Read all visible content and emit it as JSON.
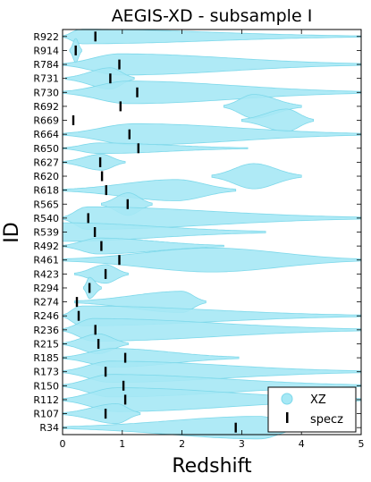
{
  "chart_data": {
    "type": "violin",
    "title": "AEGIS-XD - subsample I",
    "xlabel": "Redshift",
    "ylabel": "ID",
    "xlim": [
      0,
      5
    ],
    "xticks": [
      "0",
      "1",
      "2",
      "3",
      "4",
      "5"
    ],
    "grid": false,
    "legend": {
      "placement": "bottom-right",
      "entries": [
        {
          "label": "XZ",
          "marker": "circle",
          "color": "#a6e8f5"
        },
        {
          "label": "specz",
          "marker": "vertical-bar",
          "color": "#000000"
        }
      ]
    },
    "colors": {
      "violin_fill": "#a6e8f5",
      "violin_edge": "#7dd8ea",
      "specz_marker": "#000000"
    },
    "objects": [
      {
        "id": "R922",
        "specz": 0.55,
        "violins": [
          {
            "min": 0.0,
            "max": 5.0,
            "peak": 0.3,
            "width": 0.55
          }
        ]
      },
      {
        "id": "R914",
        "specz": 0.22,
        "violins": [
          {
            "min": 0.12,
            "max": 0.32,
            "peak": 0.22,
            "width": 0.9
          }
        ]
      },
      {
        "id": "R784",
        "specz": 0.95,
        "violins": [
          {
            "min": 0.0,
            "max": 5.0,
            "peak": 0.95,
            "width": 0.8
          }
        ]
      },
      {
        "id": "R731",
        "specz": 0.8,
        "violins": [
          {
            "min": 0.05,
            "max": 1.2,
            "peak": 0.8,
            "width": 0.8
          }
        ]
      },
      {
        "id": "R730",
        "specz": 1.25,
        "violins": [
          {
            "min": 0.0,
            "max": 5.0,
            "peak": 1.1,
            "width": 0.85
          }
        ]
      },
      {
        "id": "R692",
        "specz": 0.97,
        "violins": [
          {
            "min": 2.7,
            "max": 4.0,
            "peak": 3.2,
            "width": 0.9
          }
        ]
      },
      {
        "id": "R669",
        "specz": 0.18,
        "violins": [
          {
            "min": 3.0,
            "max": 4.2,
            "peak": 3.75,
            "width": 0.85
          }
        ]
      },
      {
        "id": "R664",
        "specz": 1.12,
        "violins": [
          {
            "min": 0.0,
            "max": 5.0,
            "peak": 1.2,
            "width": 0.8
          }
        ]
      },
      {
        "id": "R650",
        "specz": 1.27,
        "violins": [
          {
            "min": 0.0,
            "max": 3.1,
            "peak": 0.6,
            "width": 0.4
          }
        ]
      },
      {
        "id": "R627",
        "specz": 0.63,
        "violins": [
          {
            "min": 0.0,
            "max": 1.05,
            "peak": 0.65,
            "width": 0.6
          }
        ]
      },
      {
        "id": "R620",
        "specz": 0.66,
        "violins": [
          {
            "min": 2.5,
            "max": 4.0,
            "peak": 3.2,
            "width": 0.95
          }
        ]
      },
      {
        "id": "R618",
        "specz": 0.73,
        "violins": [
          {
            "min": 0.0,
            "max": 2.9,
            "peak": 1.9,
            "width": 0.8
          }
        ]
      },
      {
        "id": "R565",
        "specz": 1.09,
        "violins": [
          {
            "min": 0.65,
            "max": 1.5,
            "peak": 1.1,
            "width": 0.85
          }
        ]
      },
      {
        "id": "R540",
        "specz": 0.43,
        "violins": [
          {
            "min": 0.0,
            "max": 5.0,
            "peak": 0.4,
            "width": 0.85
          }
        ]
      },
      {
        "id": "R539",
        "specz": 0.54,
        "violins": [
          {
            "min": 0.0,
            "max": 3.4,
            "peak": 0.0,
            "width": 0.7
          }
        ]
      },
      {
        "id": "R492",
        "specz": 0.65,
        "violins": [
          {
            "min": 0.0,
            "max": 2.7,
            "peak": 0.6,
            "width": 0.6
          }
        ]
      },
      {
        "id": "R461",
        "specz": 0.95,
        "violins": [
          {
            "min": 0.0,
            "max": 5.0,
            "peak": 2.5,
            "width": 0.9
          }
        ]
      },
      {
        "id": "R423",
        "specz": 0.72,
        "violins": [
          {
            "min": 0.2,
            "max": 1.1,
            "peak": 0.72,
            "width": 0.7
          }
        ]
      },
      {
        "id": "R294",
        "specz": 0.45,
        "violins": [
          {
            "min": 0.35,
            "max": 0.65,
            "peak": 0.45,
            "width": 0.8
          }
        ]
      },
      {
        "id": "R274",
        "specz": 0.24,
        "violins": [
          {
            "min": 0.2,
            "max": 2.4,
            "peak": 2.0,
            "width": 0.8
          }
        ]
      },
      {
        "id": "R246",
        "specz": 0.27,
        "violins": [
          {
            "min": 0.0,
            "max": 5.0,
            "peak": 0.3,
            "width": 0.75
          }
        ]
      },
      {
        "id": "R236",
        "specz": 0.55,
        "violins": [
          {
            "min": 0.0,
            "max": 5.0,
            "peak": 0.5,
            "width": 0.85
          }
        ]
      },
      {
        "id": "R215",
        "specz": 0.6,
        "violins": [
          {
            "min": 0.0,
            "max": 1.1,
            "peak": 0.6,
            "width": 0.75
          }
        ]
      },
      {
        "id": "R185",
        "specz": 1.05,
        "violins": [
          {
            "min": 0.0,
            "max": 2.95,
            "peak": 0.85,
            "width": 0.7
          }
        ]
      },
      {
        "id": "R173",
        "specz": 0.72,
        "violins": [
          {
            "min": 0.0,
            "max": 5.0,
            "peak": 0.8,
            "width": 0.8
          }
        ]
      },
      {
        "id": "R150",
        "specz": 1.02,
        "violins": [
          {
            "min": 0.0,
            "max": 5.0,
            "peak": 0.8,
            "width": 0.85
          }
        ]
      },
      {
        "id": "R112",
        "specz": 1.05,
        "violins": [
          {
            "min": 0.0,
            "max": 5.0,
            "peak": 0.9,
            "width": 0.9
          }
        ]
      },
      {
        "id": "R107",
        "specz": 0.72,
        "violins": [
          {
            "min": 0.0,
            "max": 1.3,
            "peak": 0.9,
            "width": 0.75
          }
        ]
      },
      {
        "id": "R34",
        "specz": 2.9,
        "violins": [
          {
            "min": 0.0,
            "max": 4.0,
            "peak": 3.3,
            "width": 0.85
          }
        ]
      }
    ]
  }
}
